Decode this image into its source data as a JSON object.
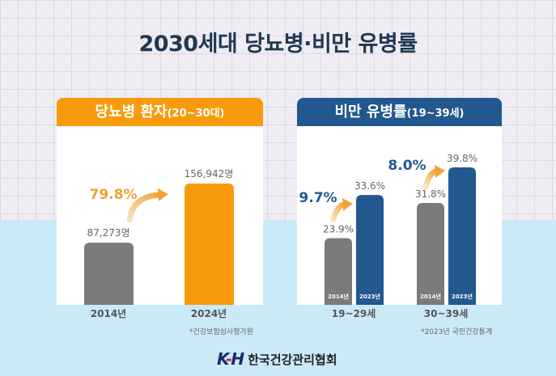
{
  "title": "2030세대 당뇨병·비만 유병률",
  "colors": {
    "orange": "#f79a0c",
    "blue": "#22588f",
    "gray": "#7b7b7b",
    "navy": "#1f3852"
  },
  "chart_data": [
    {
      "type": "bar",
      "title": "당뇨병 환자",
      "title_suffix": "(20~30대)",
      "categories": [
        "2014년",
        "2024년"
      ],
      "values": [
        87273,
        156942
      ],
      "value_labels": [
        "87,273명",
        "156,942명"
      ],
      "annotation": "79.8%",
      "footnote": "*건강보험심사평가원"
    },
    {
      "type": "bar",
      "title": "비만 유병률",
      "title_suffix": "(19~39세)",
      "categories": [
        "19~29세",
        "30~39세"
      ],
      "series": [
        {
          "name": "2014년",
          "values": [
            23.9,
            31.8
          ]
        },
        {
          "name": "2023년",
          "values": [
            33.6,
            39.8
          ]
        }
      ],
      "value_labels": [
        [
          "23.9%",
          "31.8%"
        ],
        [
          "33.6%",
          "39.8%"
        ]
      ],
      "annotations": [
        "9.7%",
        "8.0%"
      ],
      "footnote": "*2023년 국민건강통계"
    }
  ],
  "logo": {
    "mark": "KH",
    "org": "한국건강관리협회"
  }
}
